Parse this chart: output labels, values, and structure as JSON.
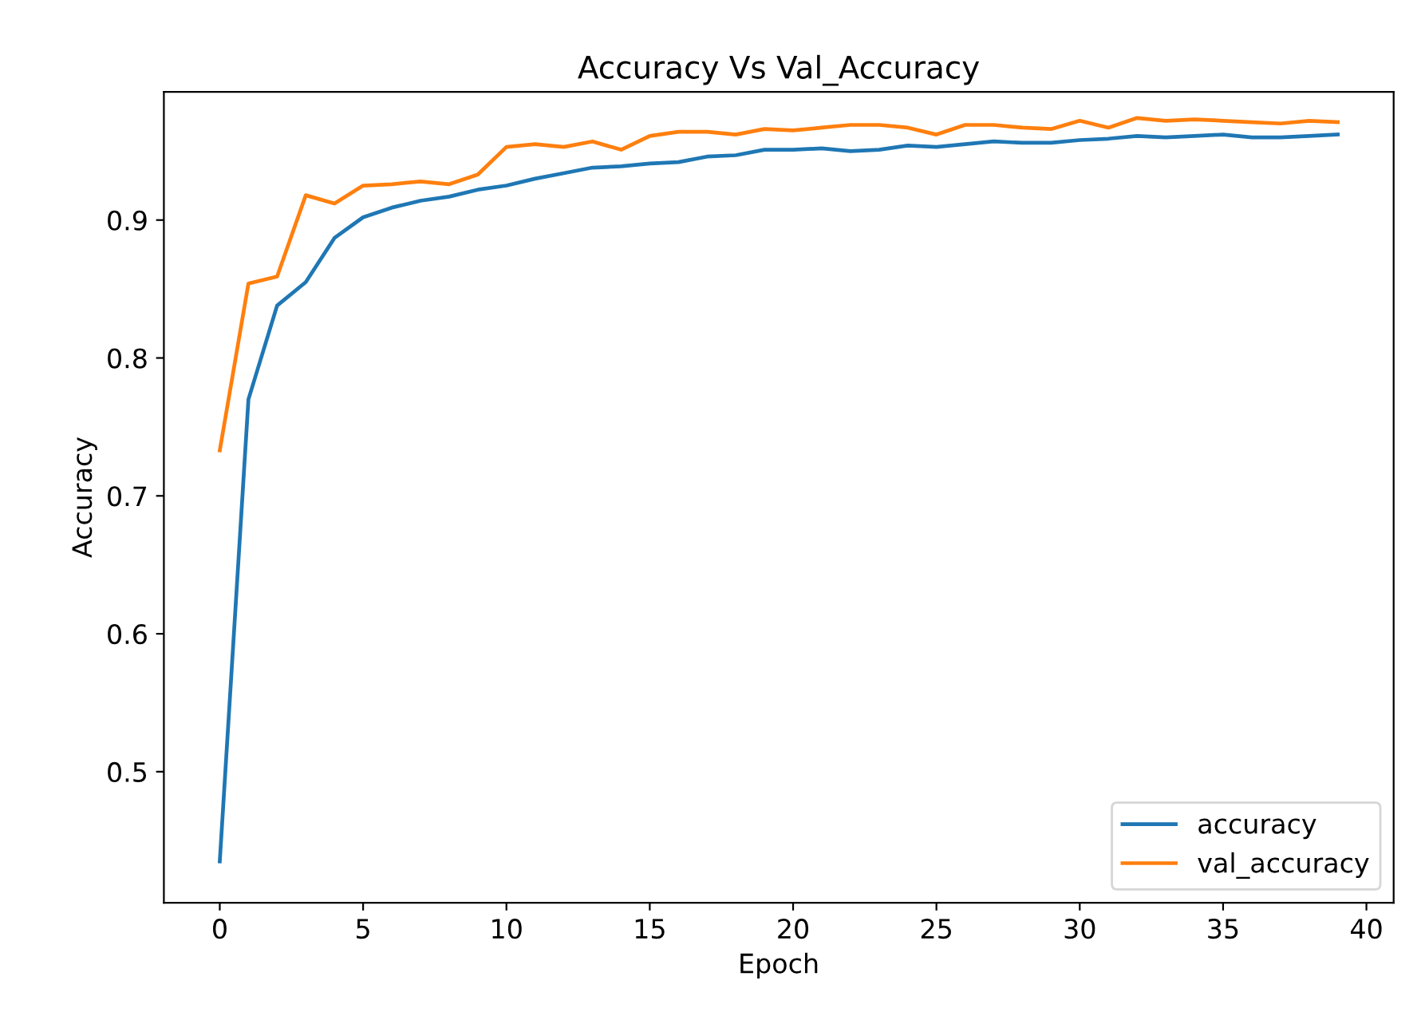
{
  "chart_data": {
    "type": "line",
    "title": "Accuracy Vs Val_Accuracy",
    "xlabel": "Epoch",
    "ylabel": "Accuracy",
    "x": [
      0,
      1,
      2,
      3,
      4,
      5,
      6,
      7,
      8,
      9,
      10,
      11,
      12,
      13,
      14,
      15,
      16,
      17,
      18,
      19,
      20,
      21,
      22,
      23,
      24,
      25,
      26,
      27,
      28,
      29,
      30,
      31,
      32,
      33,
      34,
      35,
      36,
      37,
      38,
      39
    ],
    "series": [
      {
        "name": "accuracy",
        "color": "#1f77b4",
        "values": [
          0.435,
          0.77,
          0.838,
          0.855,
          0.887,
          0.902,
          0.909,
          0.914,
          0.917,
          0.922,
          0.925,
          0.93,
          0.934,
          0.938,
          0.939,
          0.941,
          0.942,
          0.946,
          0.947,
          0.951,
          0.951,
          0.952,
          0.95,
          0.951,
          0.954,
          0.953,
          0.955,
          0.957,
          0.956,
          0.956,
          0.958,
          0.959,
          0.961,
          0.96,
          0.961,
          0.962,
          0.96,
          0.96,
          0.961,
          0.962
        ]
      },
      {
        "name": "val_accuracy",
        "color": "#ff7f0e",
        "values": [
          0.733,
          0.854,
          0.859,
          0.918,
          0.912,
          0.925,
          0.926,
          0.928,
          0.926,
          0.933,
          0.953,
          0.955,
          0.953,
          0.957,
          0.951,
          0.961,
          0.964,
          0.964,
          0.962,
          0.966,
          0.965,
          0.967,
          0.969,
          0.969,
          0.967,
          0.962,
          0.969,
          0.969,
          0.967,
          0.966,
          0.972,
          0.967,
          0.974,
          0.972,
          0.973,
          0.972,
          0.971,
          0.97,
          0.972,
          0.971
        ]
      }
    ],
    "xlim": [
      -1.95,
      40.95
    ],
    "ylim": [
      0.405,
      0.993
    ],
    "xticks": [
      0,
      5,
      10,
      15,
      20,
      25,
      30,
      35,
      40
    ],
    "yticks": [
      0.5,
      0.6,
      0.7,
      0.8,
      0.9
    ],
    "legend": "lower right",
    "grid": false,
    "marker": "none",
    "line_style": "solid"
  }
}
